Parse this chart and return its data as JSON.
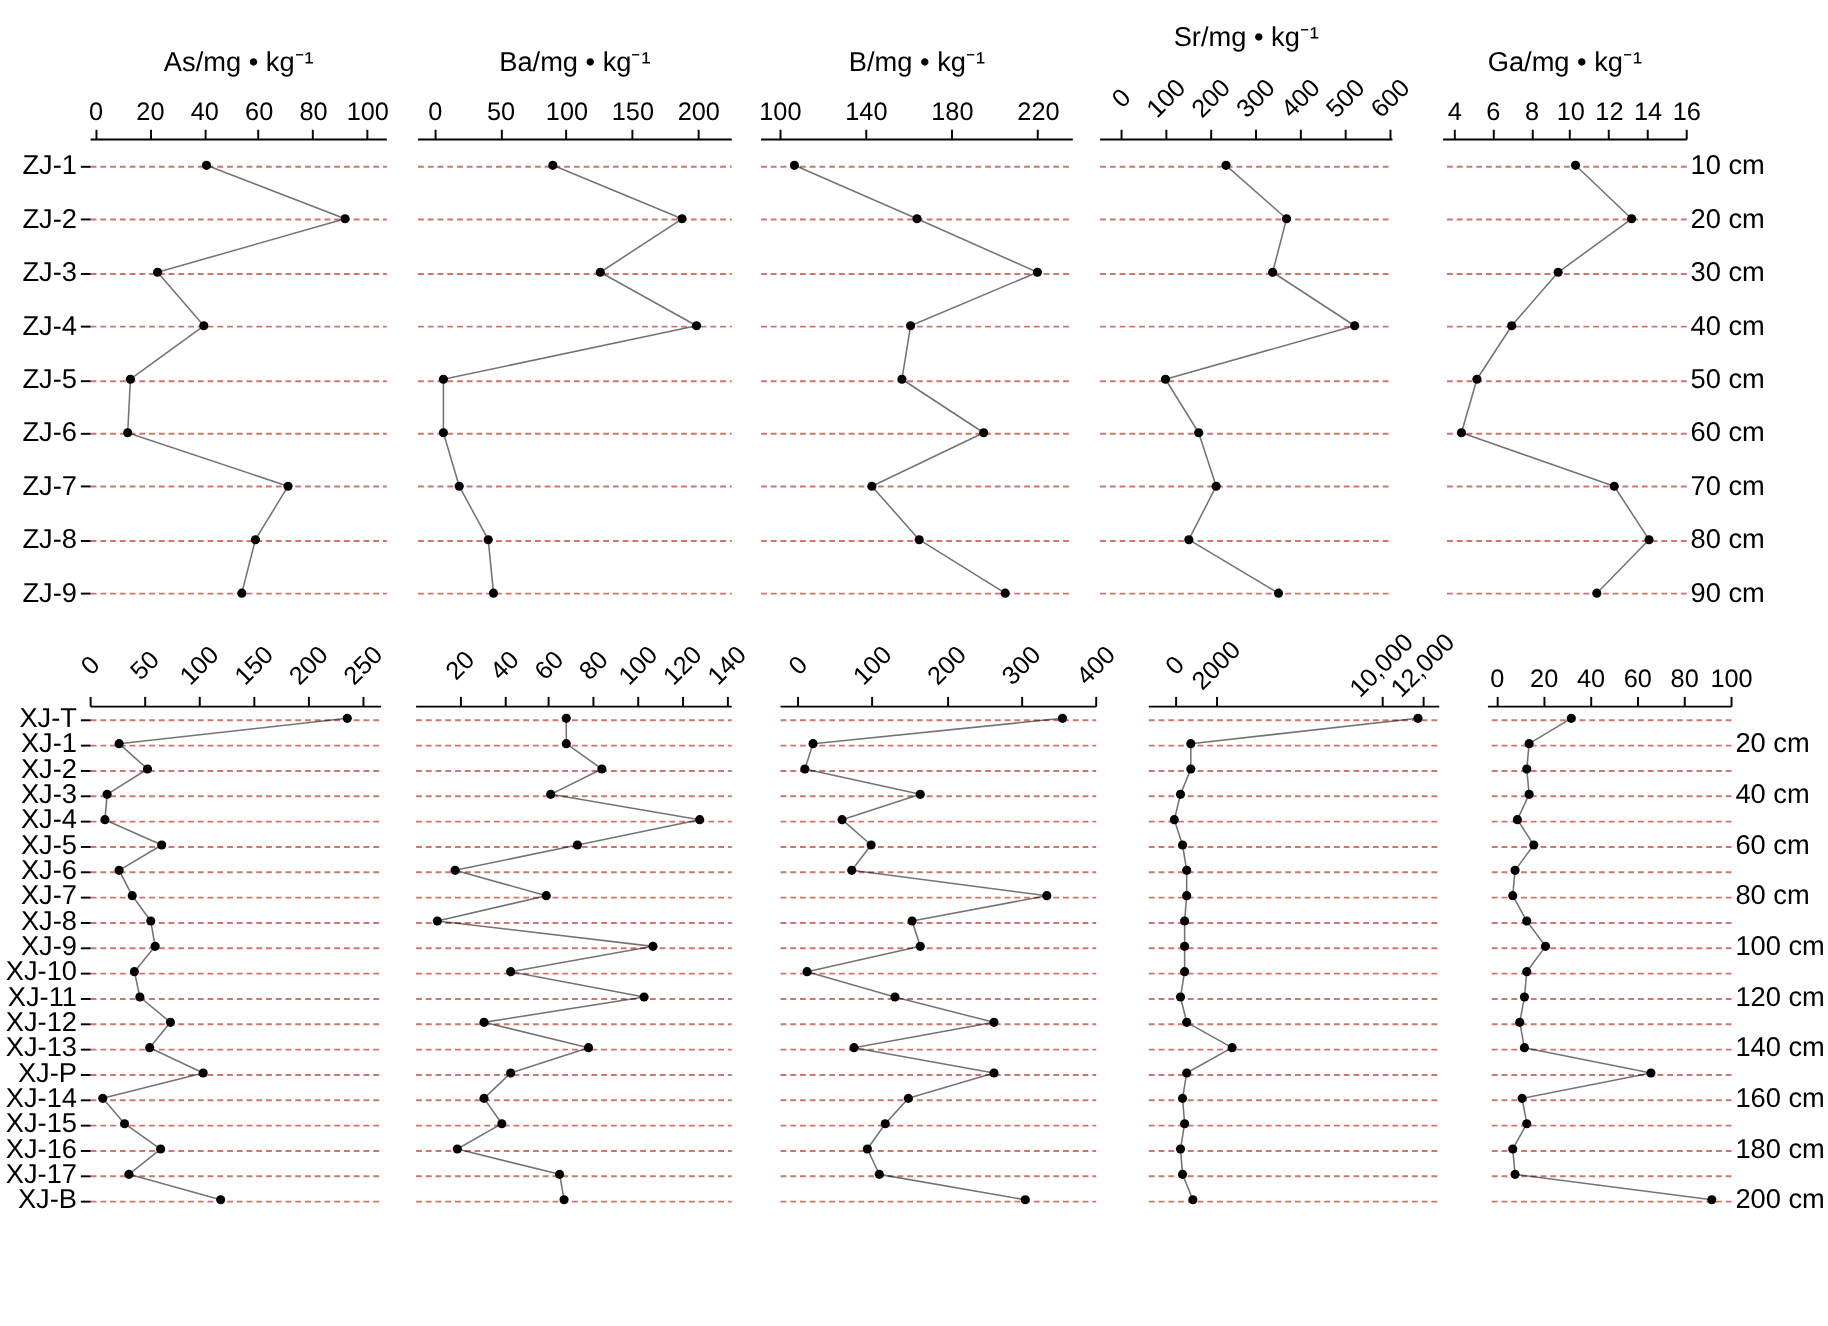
{
  "chart_data": [
    {
      "type": "line",
      "orientation": "horizontal",
      "xlabel": "As/mg • kg⁻¹",
      "categories": [
        "ZJ-1",
        "ZJ-2",
        "ZJ-3",
        "ZJ-4",
        "ZJ-5",
        "ZJ-6",
        "ZJ-7",
        "ZJ-8",
        "ZJ-9"
      ],
      "series": [
        {
          "color": "#000000",
          "values": [
            41,
            92,
            23,
            40,
            13,
            12,
            71,
            59,
            54
          ]
        }
      ],
      "xlim": [
        -2,
        107
      ],
      "xticks": [
        0,
        20,
        40,
        60,
        80,
        100
      ],
      "grid": "y",
      "marker": "circle"
    },
    {
      "type": "line",
      "orientation": "horizontal",
      "xlabel": "Ba/mg • kg⁻¹",
      "series": [
        {
          "color": "#000000",
          "values": [
            90,
            188,
            126,
            199,
            7,
            7,
            19,
            41,
            45
          ]
        }
      ],
      "xlim": [
        -13,
        225
      ],
      "xticks": [
        0,
        50,
        100,
        150,
        200
      ],
      "grid": "y",
      "marker": "circle",
      "tick_labels": "x"
    },
    {
      "type": "line",
      "orientation": "horizontal",
      "xlabel": "B/mg • kg⁻¹",
      "series": [
        {
          "color": "#000000",
          "values": [
            107,
            164,
            220,
            161,
            157,
            195,
            143,
            165,
            205
          ]
        }
      ],
      "xlim": [
        91,
        236
      ],
      "xticks": [
        100,
        140,
        180,
        220
      ],
      "grid": "y",
      "marker": "circle",
      "tick_labels": "x"
    },
    {
      "type": "line",
      "orientation": "horizontal",
      "xlabel": "Sr/mg • kg⁻¹",
      "series": [
        {
          "color": "#000000",
          "values": [
            235,
            370,
            339,
            522,
            100,
            174,
            213,
            152,
            352
          ]
        }
      ],
      "xlim": [
        -48,
        604
      ],
      "xticks": [
        0,
        100,
        200,
        300,
        400,
        500,
        600
      ],
      "grid": "y",
      "marker": "circle",
      "tick_labels": "x"
    },
    {
      "type": "line",
      "orientation": "horizontal",
      "xlabel": "Ga/mg • kg⁻¹",
      "y2_categories": [
        "10 cm",
        "20 cm",
        "30 cm",
        "40 cm",
        "50 cm",
        "60 cm",
        "70 cm",
        "80 cm",
        "90 cm"
      ],
      "series": [
        {
          "color": "#000000",
          "values": [
            10.3,
            13.2,
            9.4,
            7.0,
            5.2,
            4.4,
            12.3,
            14.1,
            11.4
          ]
        }
      ],
      "xlim": [
        3.4,
        16
      ],
      "xticks": [
        4,
        6,
        8,
        10,
        12,
        14,
        16
      ],
      "grid": "y",
      "marker": "circle",
      "tick_labels": "x"
    },
    {
      "type": "line",
      "orientation": "horizontal",
      "categories": [
        "XJ-T",
        "XJ-1",
        "XJ-2",
        "XJ-3",
        "XJ-4",
        "XJ-5",
        "XJ-6",
        "XJ-7",
        "XJ-8",
        "XJ-9",
        "XJ-10",
        "XJ-11",
        "XJ-12",
        "XJ-13",
        "XJ-P",
        "XJ-14",
        "XJ-15",
        "XJ-16",
        "XJ-17",
        "XJ-B"
      ],
      "series": [
        {
          "color": "#000000",
          "values": [
            236,
            27,
            53,
            16,
            14,
            66,
            27,
            39,
            56,
            60,
            41,
            46,
            74,
            55,
            104,
            12,
            32,
            65,
            36,
            120
          ]
        }
      ],
      "xlim": [
        0,
        266
      ],
      "xticks": [
        0,
        50,
        100,
        150,
        200,
        250
      ],
      "grid": "y",
      "marker": "circle"
    },
    {
      "type": "line",
      "orientation": "horizontal",
      "series": [
        {
          "color": "#000000",
          "values": [
            68,
            68,
            84,
            61,
            128,
            73,
            18,
            59,
            10,
            107,
            43,
            103,
            31,
            78,
            43,
            31,
            39,
            19,
            65,
            67
          ]
        }
      ],
      "xlim": [
        0,
        142
      ],
      "xticks": [
        20,
        40,
        60,
        80,
        100,
        120,
        140
      ],
      "grid": "y",
      "marker": "circle",
      "tick_labels": "x"
    },
    {
      "type": "line",
      "orientation": "horizontal",
      "series": [
        {
          "color": "#000000",
          "values": [
            356,
            21,
            10,
            165,
            60,
            99,
            73,
            335,
            154,
            165,
            13,
            131,
            264,
            76,
            264,
            149,
            118,
            94,
            110,
            306
          ]
        }
      ],
      "xlim": [
        -24,
        400
      ],
      "xticks": [
        0,
        100,
        200,
        300,
        400
      ],
      "grid": "y",
      "marker": "circle",
      "tick_labels": "x"
    },
    {
      "type": "line",
      "orientation": "horizontal",
      "series": [
        {
          "color": "#000000",
          "values": [
            11800,
            800,
            800,
            300,
            0,
            400,
            600,
            600,
            500,
            500,
            500,
            300,
            600,
            2800,
            600,
            400,
            500,
            300,
            400,
            900
          ]
        }
      ],
      "xlim": [
        -1280,
        12780
      ],
      "xticks": [
        0,
        2000,
        {
          "value": 10000,
          "label": "10,000"
        },
        {
          "value": 12000,
          "label": "12,000"
        }
      ],
      "grid": "y",
      "marker": "circle",
      "tick_labels": "x"
    },
    {
      "type": "line",
      "orientation": "horizontal",
      "y2_categories": [
        null,
        "20 cm",
        null,
        "40 cm",
        null,
        "60 cm",
        null,
        "80 cm",
        null,
        "100 cm",
        null,
        "120 cm",
        null,
        "140 cm",
        null,
        "160 cm",
        null,
        "180 cm",
        null,
        "200 cm"
      ],
      "series": [
        {
          "color": "#000000",
          "values": [
            32,
            14,
            13,
            14,
            9,
            16,
            8,
            7,
            13,
            21,
            13,
            12,
            10,
            12,
            66,
            11,
            13,
            7,
            8,
            92
          ]
        }
      ],
      "xlim": [
        -4,
        100
      ],
      "xticks": [
        0,
        20,
        40,
        60,
        80,
        100
      ],
      "grid": "y",
      "marker": "circle",
      "tick_labels": "x"
    }
  ]
}
